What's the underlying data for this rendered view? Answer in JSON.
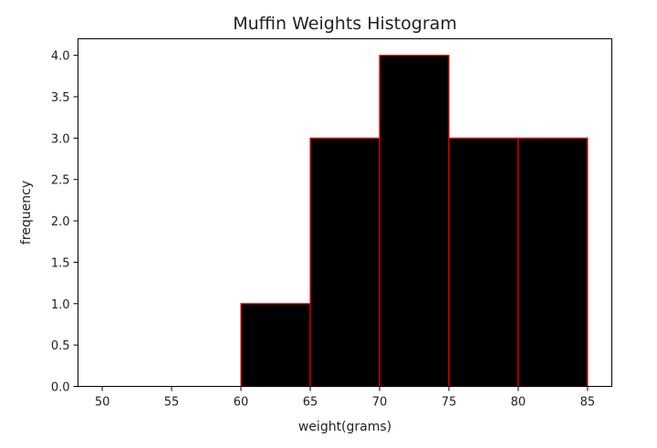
{
  "chart_data": {
    "type": "bar",
    "title": "Muffin Weights Histogram",
    "xlabel": "weight(grams)",
    "ylabel": "frequency",
    "bins": [
      {
        "start": 60,
        "end": 65,
        "count": 1
      },
      {
        "start": 65,
        "end": 70,
        "count": 3
      },
      {
        "start": 70,
        "end": 75,
        "count": 4
      },
      {
        "start": 75,
        "end": 80,
        "count": 3
      },
      {
        "start": 80,
        "end": 85,
        "count": 3
      }
    ],
    "xlim": [
      48.25,
      86.75
    ],
    "ylim": [
      0,
      4.2
    ],
    "x_ticks": [
      "50",
      "55",
      "60",
      "65",
      "70",
      "75",
      "80",
      "85"
    ],
    "y_ticks": [
      "0.0",
      "0.5",
      "1.0",
      "1.5",
      "2.0",
      "2.5",
      "3.0",
      "3.5",
      "4.0"
    ],
    "bar_fill_color": "#000000",
    "bar_edge_color": "#ff0000",
    "grid": false,
    "legend": "none"
  }
}
